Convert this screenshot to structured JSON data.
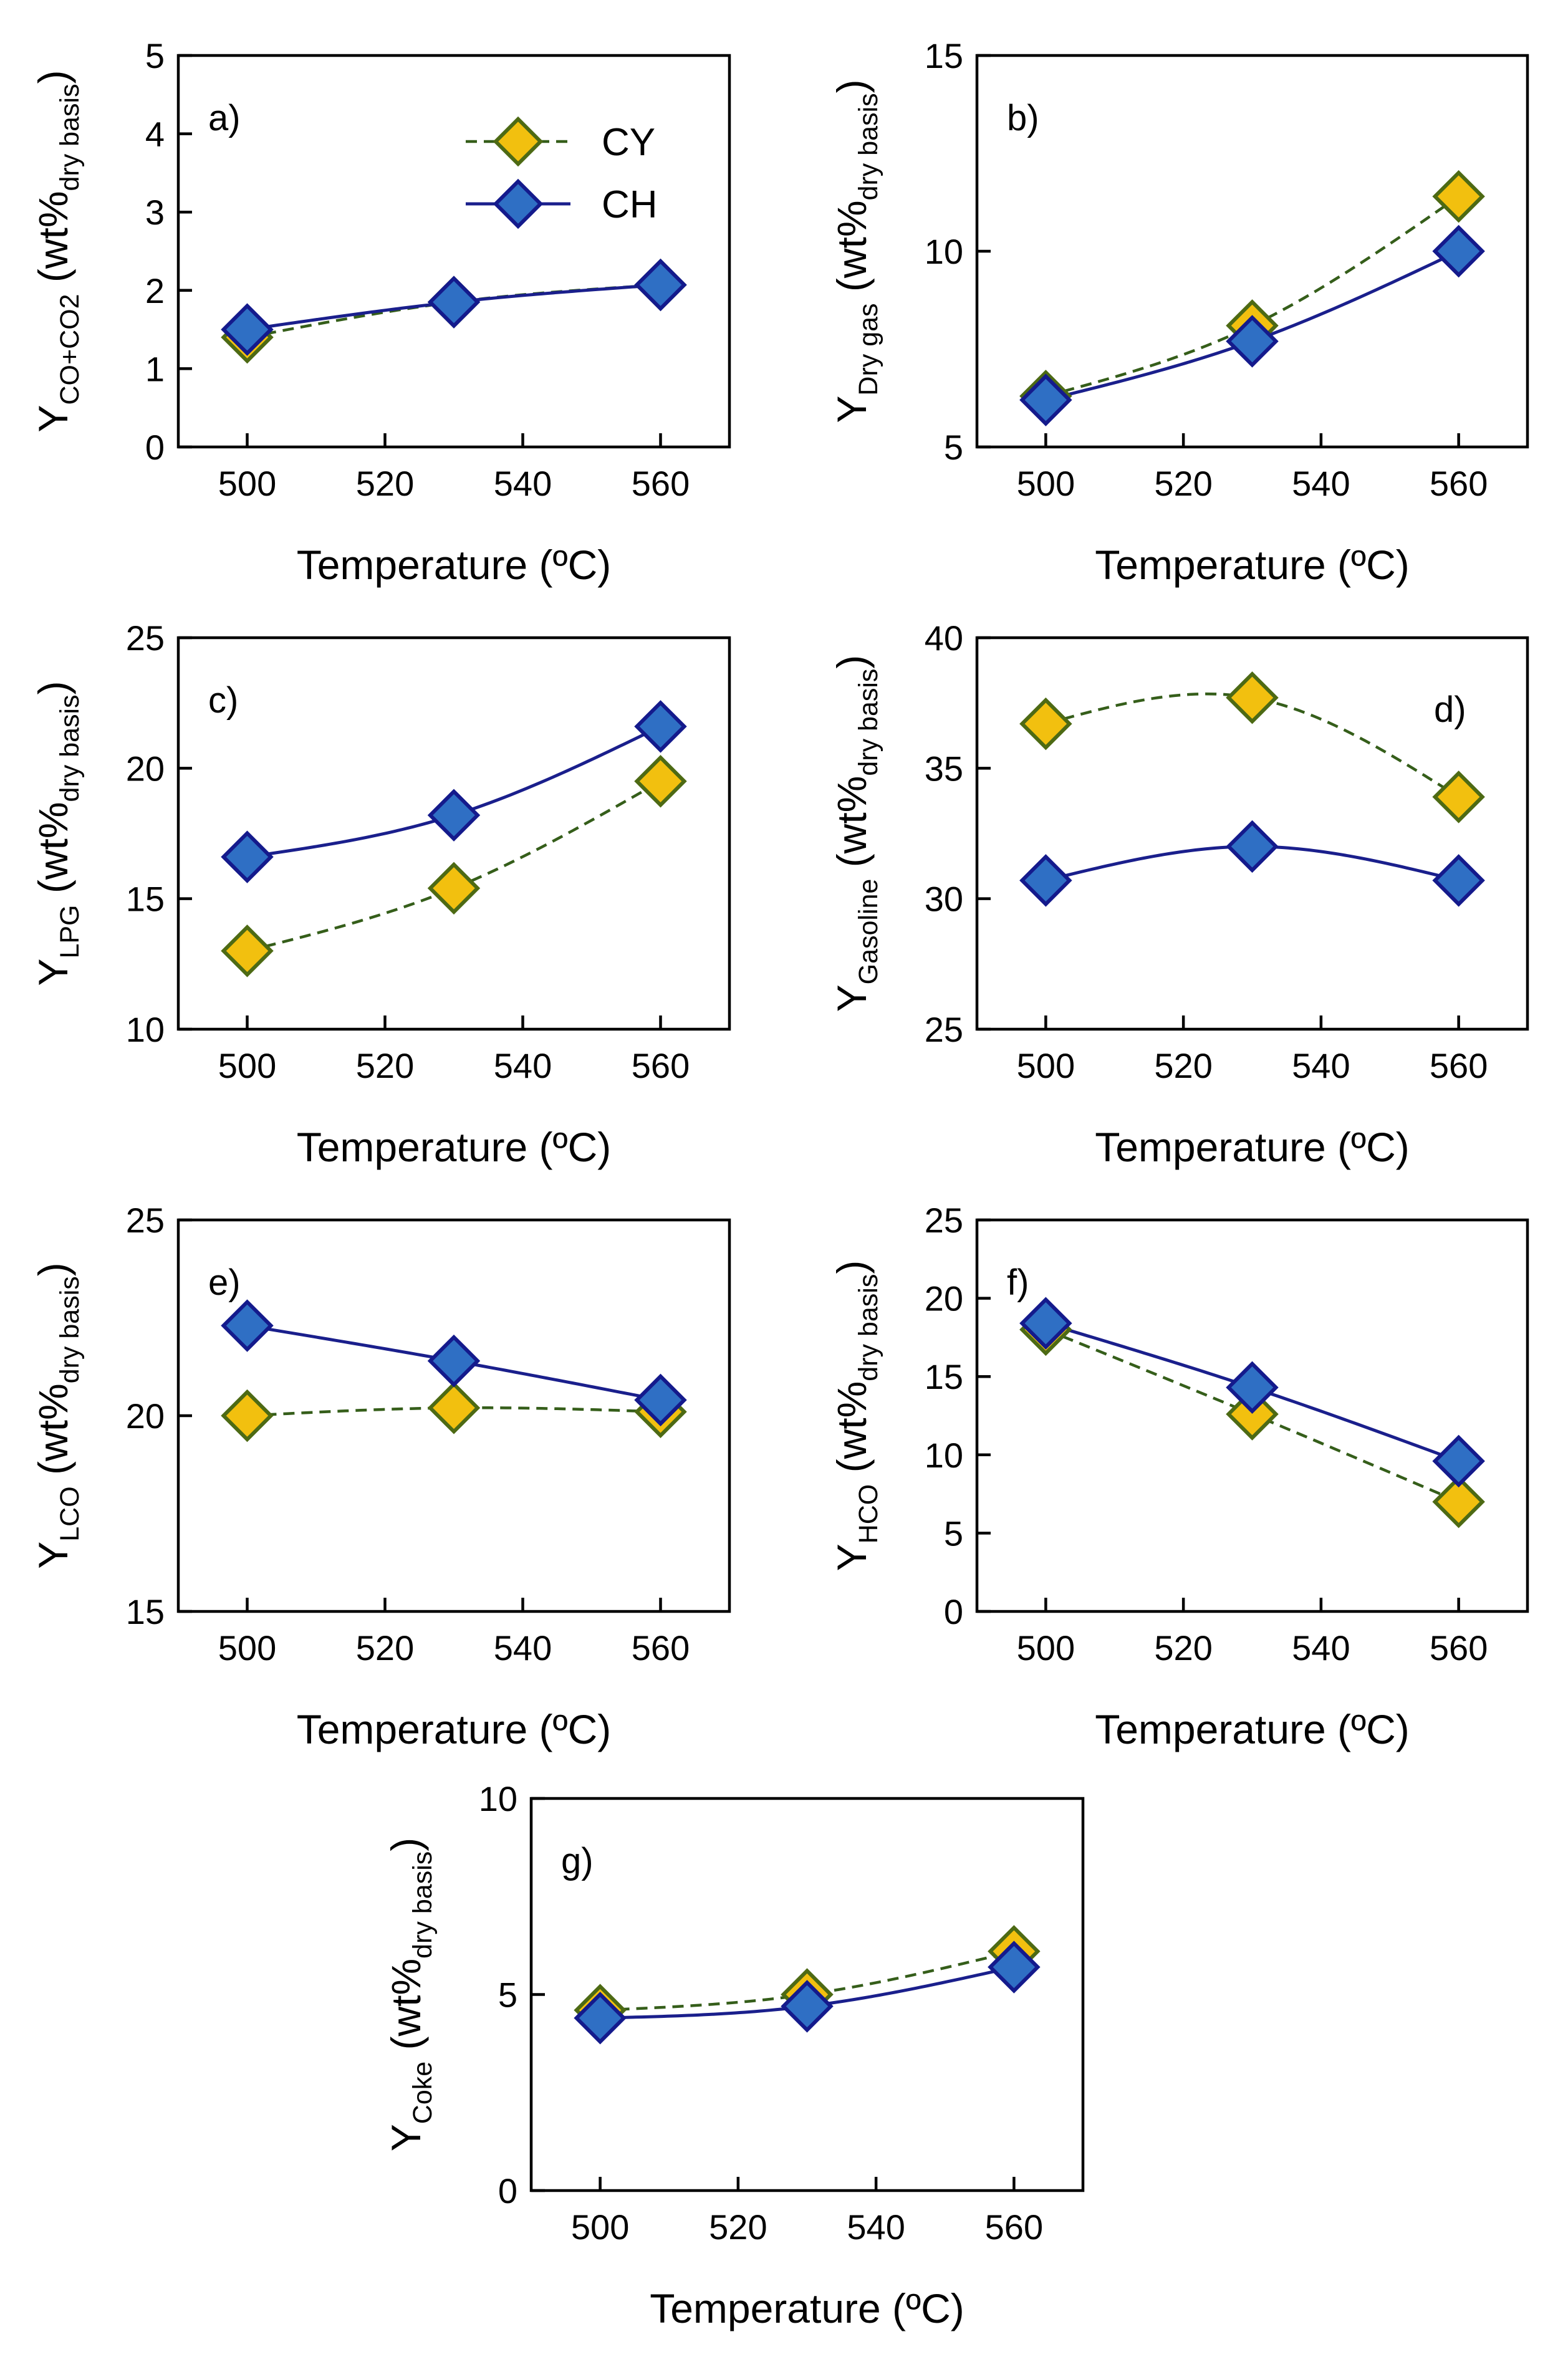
{
  "colors": {
    "cy_line": "#355e1a",
    "cy_fill": "#f2c00f",
    "cy_edge": "#4d6a14",
    "ch_line": "#1a1f8c",
    "ch_fill": "#2f6fc4",
    "ch_edge": "#141a8c"
  },
  "legend": [
    {
      "name": "CY",
      "style": "dashed"
    },
    {
      "name": "CH",
      "style": "solid"
    }
  ],
  "chart_data": [
    {
      "id": "a",
      "panel_label": "a)",
      "type": "line",
      "xlabel": "Temperature (ºC)",
      "ylabel_main": "Y",
      "ylabel_sub": "CO+CO2",
      "ylabel_unit": "(wt%",
      "ylabel_unit_sub": "dry basis",
      "ylabel_close": ")",
      "xlim": [
        490,
        570
      ],
      "ylim": [
        0,
        5
      ],
      "xticks": [
        500,
        520,
        540,
        560
      ],
      "yticks": [
        0,
        1,
        2,
        3,
        4,
        5
      ],
      "x": [
        500,
        530,
        560
      ],
      "series": [
        {
          "name": "CY",
          "values": [
            1.4,
            1.85,
            2.07
          ]
        },
        {
          "name": "CH",
          "values": [
            1.5,
            1.85,
            2.07
          ]
        }
      ]
    },
    {
      "id": "b",
      "panel_label": "b)",
      "type": "line",
      "xlabel": "Temperature (ºC)",
      "ylabel_main": "Y",
      "ylabel_sub": "Dry gas",
      "ylabel_unit": "(wt%",
      "ylabel_unit_sub": "dry basis",
      "ylabel_close": ")",
      "xlim": [
        490,
        570
      ],
      "ylim": [
        5,
        15
      ],
      "xticks": [
        500,
        520,
        540,
        560
      ],
      "yticks": [
        5,
        10,
        15
      ],
      "x": [
        500,
        530,
        560
      ],
      "series": [
        {
          "name": "CY",
          "values": [
            6.3,
            8.1,
            11.4
          ]
        },
        {
          "name": "CH",
          "values": [
            6.2,
            7.7,
            10.0
          ]
        }
      ]
    },
    {
      "id": "c",
      "panel_label": "c)",
      "type": "line",
      "xlabel": "Temperature (ºC)",
      "ylabel_main": "Y",
      "ylabel_sub": "LPG",
      "ylabel_unit": "(wt%",
      "ylabel_unit_sub": "dry basis",
      "ylabel_close": ")",
      "xlim": [
        490,
        570
      ],
      "ylim": [
        10,
        25
      ],
      "xticks": [
        500,
        520,
        540,
        560
      ],
      "yticks": [
        10,
        15,
        20,
        25
      ],
      "x": [
        500,
        530,
        560
      ],
      "series": [
        {
          "name": "CY",
          "values": [
            13.0,
            15.4,
            19.5
          ]
        },
        {
          "name": "CH",
          "values": [
            16.6,
            18.2,
            21.6
          ]
        }
      ]
    },
    {
      "id": "d",
      "panel_label": "d)",
      "type": "line",
      "xlabel": "Temperature (ºC)",
      "ylabel_main": "Y",
      "ylabel_sub": "Gasoline",
      "ylabel_unit": "(wt%",
      "ylabel_unit_sub": "dry basis",
      "ylabel_close": ")",
      "xlim": [
        490,
        570
      ],
      "ylim": [
        25,
        40
      ],
      "xticks": [
        500,
        520,
        540,
        560
      ],
      "yticks": [
        25,
        30,
        35,
        40
      ],
      "x": [
        500,
        530,
        560
      ],
      "series": [
        {
          "name": "CY",
          "values": [
            36.7,
            37.7,
            33.9
          ]
        },
        {
          "name": "CH",
          "values": [
            30.7,
            32.0,
            30.7
          ]
        }
      ]
    },
    {
      "id": "e",
      "panel_label": "e)",
      "type": "line",
      "xlabel": "Temperature (ºC)",
      "ylabel_main": "Y",
      "ylabel_sub": "LCO",
      "ylabel_unit": "(wt%",
      "ylabel_unit_sub": "dry basis",
      "ylabel_close": ")",
      "xlim": [
        490,
        570
      ],
      "ylim": [
        15,
        25
      ],
      "xticks": [
        500,
        520,
        540,
        560
      ],
      "yticks": [
        15,
        20,
        25
      ],
      "x": [
        500,
        530,
        560
      ],
      "series": [
        {
          "name": "CY",
          "values": [
            20.0,
            20.2,
            20.1
          ]
        },
        {
          "name": "CH",
          "values": [
            22.3,
            21.4,
            20.4
          ]
        }
      ]
    },
    {
      "id": "f",
      "panel_label": "f)",
      "type": "line",
      "xlabel": "Temperature (ºC)",
      "ylabel_main": "Y",
      "ylabel_sub": "HCO",
      "ylabel_unit": "(wt%",
      "ylabel_unit_sub": "dry basis",
      "ylabel_close": ")",
      "xlim": [
        490,
        570
      ],
      "ylim": [
        0,
        25
      ],
      "xticks": [
        500,
        520,
        540,
        560
      ],
      "yticks": [
        0,
        5,
        10,
        15,
        20,
        25
      ],
      "x": [
        500,
        530,
        560
      ],
      "series": [
        {
          "name": "CY",
          "values": [
            18.0,
            12.6,
            7.0
          ]
        },
        {
          "name": "CH",
          "values": [
            18.4,
            14.3,
            9.6
          ]
        }
      ]
    },
    {
      "id": "g",
      "panel_label": "g)",
      "type": "line",
      "xlabel": "Temperature (ºC)",
      "ylabel_main": "Y",
      "ylabel_sub": "Coke",
      "ylabel_unit": "(wt%",
      "ylabel_unit_sub": "dry basis",
      "ylabel_close": ")",
      "xlim": [
        490,
        570
      ],
      "ylim": [
        0,
        10
      ],
      "xticks": [
        500,
        520,
        540,
        560
      ],
      "yticks": [
        0,
        5,
        10
      ],
      "x": [
        500,
        530,
        560
      ],
      "series": [
        {
          "name": "CY",
          "values": [
            4.6,
            5.0,
            6.1
          ]
        },
        {
          "name": "CH",
          "values": [
            4.4,
            4.7,
            5.7
          ]
        }
      ]
    }
  ]
}
